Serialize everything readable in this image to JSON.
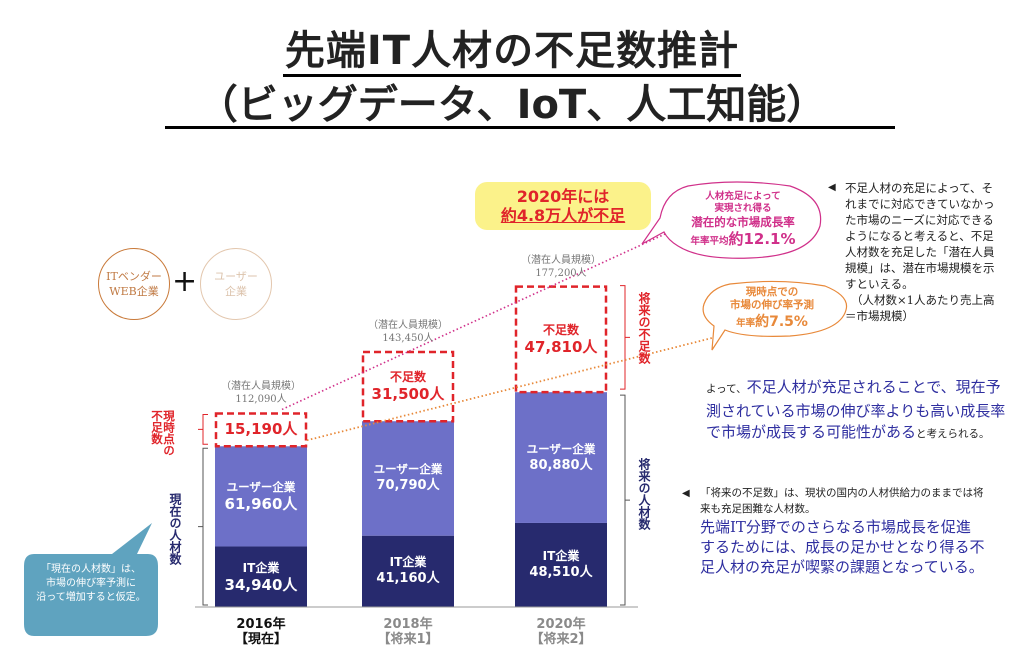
{
  "title": {
    "line1": "先端IT人材の不足数推計",
    "line2": "（ビッグデータ、IoT、人工知能）"
  },
  "legend": {
    "circle1": [
      "ITベンダー",
      "WEB企業"
    ],
    "plus": "+",
    "circle2": [
      "ユーザー",
      "企業"
    ]
  },
  "banner": {
    "line1": "2020年には",
    "line2": "約4.8万人が不足"
  },
  "bubble_potential": {
    "line1": "人材充足によって",
    "line2": "実現され得る",
    "line3": "潜在的な市場成長率",
    "rate_prefix": "年率平均",
    "rate_value": "約12.1%"
  },
  "bubble_forecast": {
    "line1": "現時点での",
    "line2": "市場の伸び率予測",
    "rate_prefix": "年率",
    "rate_value": "約7.5%"
  },
  "labels": {
    "current_shortage": "現時点の不足数",
    "current_staff": "現在の人材数",
    "future_shortage": "将来の不足数",
    "future_staff": "将来の人材数",
    "potential_caption": "（潜在人員規模）",
    "shortage_caption": "不足数"
  },
  "chart_data": {
    "type": "bar",
    "stacked": true,
    "title": "先端IT人材の不足数推計（ビッグデータ、IoT、人工知能）",
    "categories": [
      "2016年【現在】",
      "2018年【将来1】",
      "2020年【将来2】"
    ],
    "category_years": [
      "2016年",
      "2018年",
      "2020年"
    ],
    "category_tags": [
      "【現在】",
      "【将来1】",
      "【将来2】"
    ],
    "unit": "人",
    "series": [
      {
        "name": "IT企業",
        "values": [
          34940,
          41160,
          48510
        ],
        "color": "#272a6e"
      },
      {
        "name": "ユーザー企業",
        "values": [
          61960,
          70790,
          80880
        ],
        "color": "#6d70c8"
      },
      {
        "name": "不足数",
        "values": [
          15190,
          31500,
          47810
        ],
        "color": "#e0242a",
        "style": "dashed-outline"
      }
    ],
    "value_labels": {
      "IT企業": [
        "34,940人",
        "41,160人",
        "48,510人"
      ],
      "ユーザー企業": [
        "61,960人",
        "70,790人",
        "80,880人"
      ],
      "不足数": [
        "15,190人",
        "31,500人",
        "47,810人"
      ]
    },
    "potential_totals": [
      112090,
      143450,
      177200
    ],
    "potential_labels": [
      "112,090人",
      "143,450人",
      "177,200人"
    ],
    "trend_lines": [
      {
        "name": "潜在的な市場成長率 年率平均約12.1%",
        "color": "#d0308a",
        "style": "dotted"
      },
      {
        "name": "市場の伸び率予測 年率約7.5%",
        "color": "#e8893a",
        "style": "dotted"
      }
    ],
    "ylim": [
      0,
      180000
    ],
    "xlabel": "",
    "ylabel": "",
    "grid": false
  },
  "notes": {
    "note1": "不足人材の充足によって、それまでに対応できていなかった市場のニーズに対応できるようになると考えると、不足人材数を充足した「潜在人員規模」は、潜在市場規模を示すといえる。",
    "note1_formula": "（人材数×1人あたり売上高＝市場規模）",
    "note2_prefix": "よって、",
    "note2_main": "不足人材が充足されることで、現在予測されている市場の伸び率よりも高い成長率で市場が成長する可能性がある",
    "note2_suffix": "と考えられる。",
    "note3_small": "「将来の不足数」は、現状の国内の人材供給力のままでは将来も充足困難な人材数。",
    "note3_main": "先端IT分野でのさらなる市場成長を促進するためには、成長の足かせとなり得る不足人材の充足が喫緊の課題となっている。",
    "callout": [
      "「現在の人材数」は、",
      "市場の伸び率予測に",
      "沿って増加すると仮定。"
    ]
  },
  "colors": {
    "it": "#272a6e",
    "user": "#6d70c8",
    "shortage": "#e0242a",
    "banner_bg": "#fbf28a",
    "pink": "#d0308a",
    "orange": "#e8893a",
    "callout_bg": "#5fa3bf",
    "note_blue": "#2f2fa0"
  }
}
